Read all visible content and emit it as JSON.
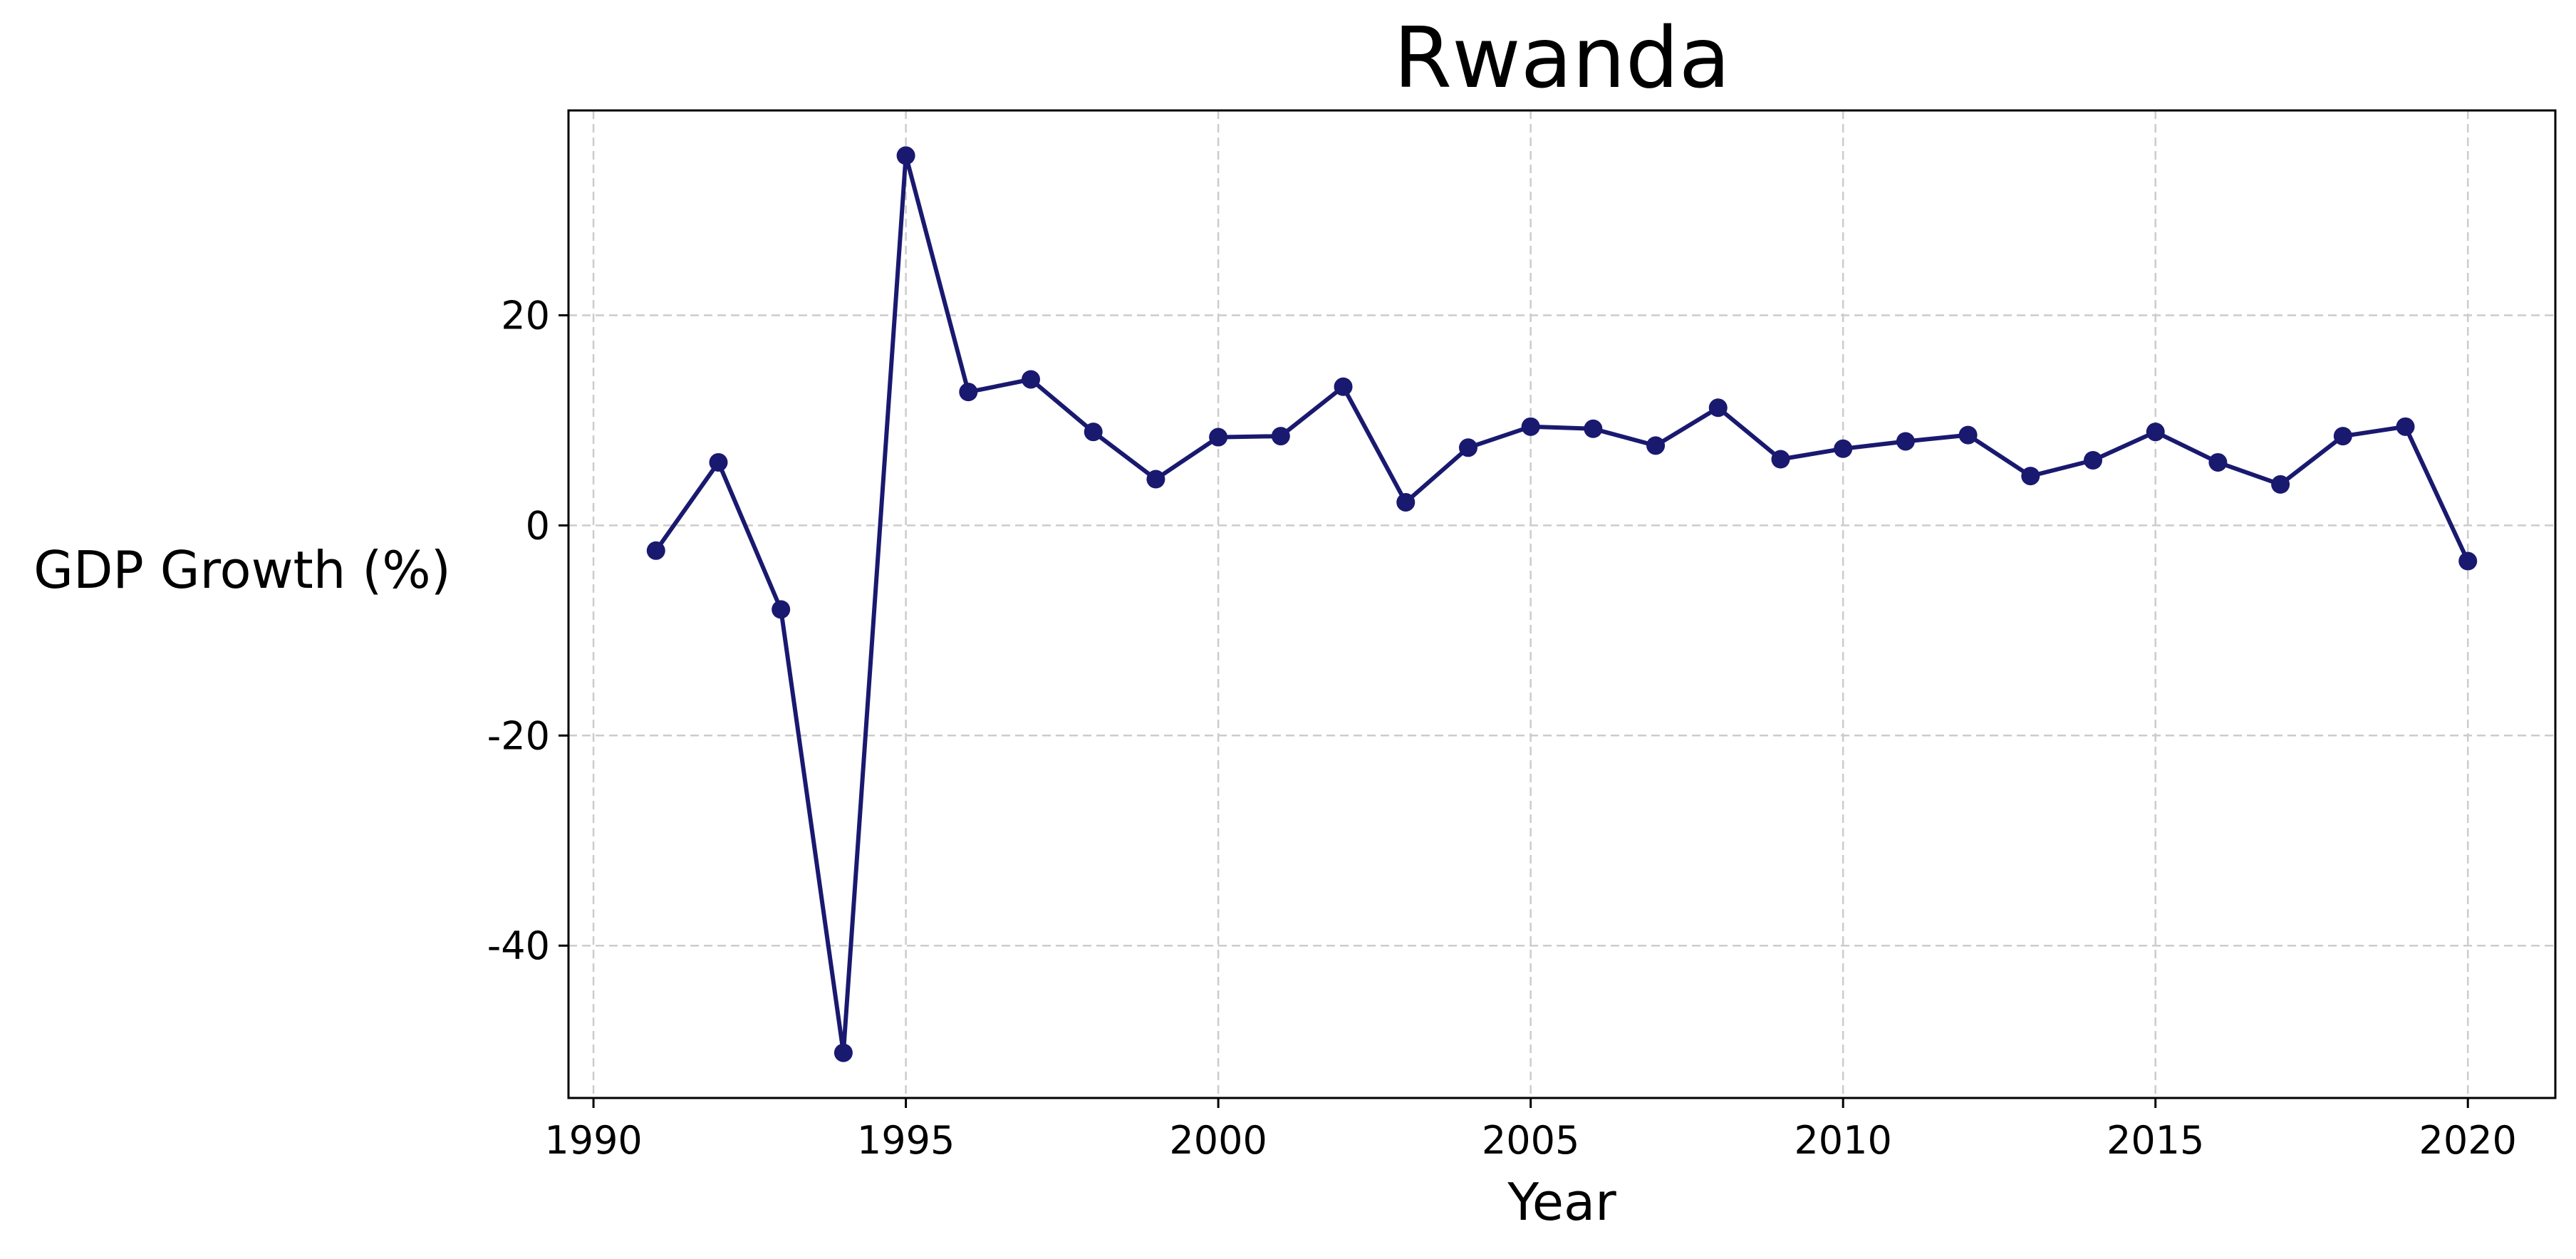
{
  "chart_data": {
    "type": "line",
    "title": "Rwanda",
    "xlabel": "Year",
    "ylabel": "GDP Growth (%)",
    "xlim": [
      1989.6,
      2021.4
    ],
    "ylim": [
      -54.5,
      39.5
    ],
    "x_ticks": [
      1990,
      1995,
      2000,
      2005,
      2010,
      2015,
      2020
    ],
    "y_ticks": [
      -40,
      -20,
      0,
      20
    ],
    "x_tick_labels": [
      "1990",
      "1995",
      "2000",
      "2005",
      "2010",
      "2015",
      "2020"
    ],
    "y_tick_labels": [
      "-40",
      "-20",
      "0",
      "20"
    ],
    "grid": true,
    "grid_style": "dashed",
    "legend": false,
    "series": [
      {
        "color": "#191970",
        "marker": "circle",
        "x": [
          1991,
          1992,
          1993,
          1994,
          1995,
          1996,
          1997,
          1998,
          1999,
          2000,
          2001,
          2002,
          2003,
          2004,
          2005,
          2006,
          2007,
          2008,
          2009,
          2010,
          2011,
          2012,
          2013,
          2014,
          2015,
          2016,
          2017,
          2018,
          2019,
          2020
        ],
        "values": [
          -2.4,
          6.0,
          -8.0,
          -50.2,
          35.2,
          12.7,
          13.9,
          8.9,
          4.4,
          8.4,
          8.5,
          13.2,
          2.2,
          7.4,
          9.4,
          9.2,
          7.6,
          11.2,
          6.3,
          7.3,
          8.0,
          8.6,
          4.7,
          6.2,
          8.9,
          6.0,
          3.9,
          8.5,
          9.4,
          -3.4
        ]
      }
    ]
  }
}
